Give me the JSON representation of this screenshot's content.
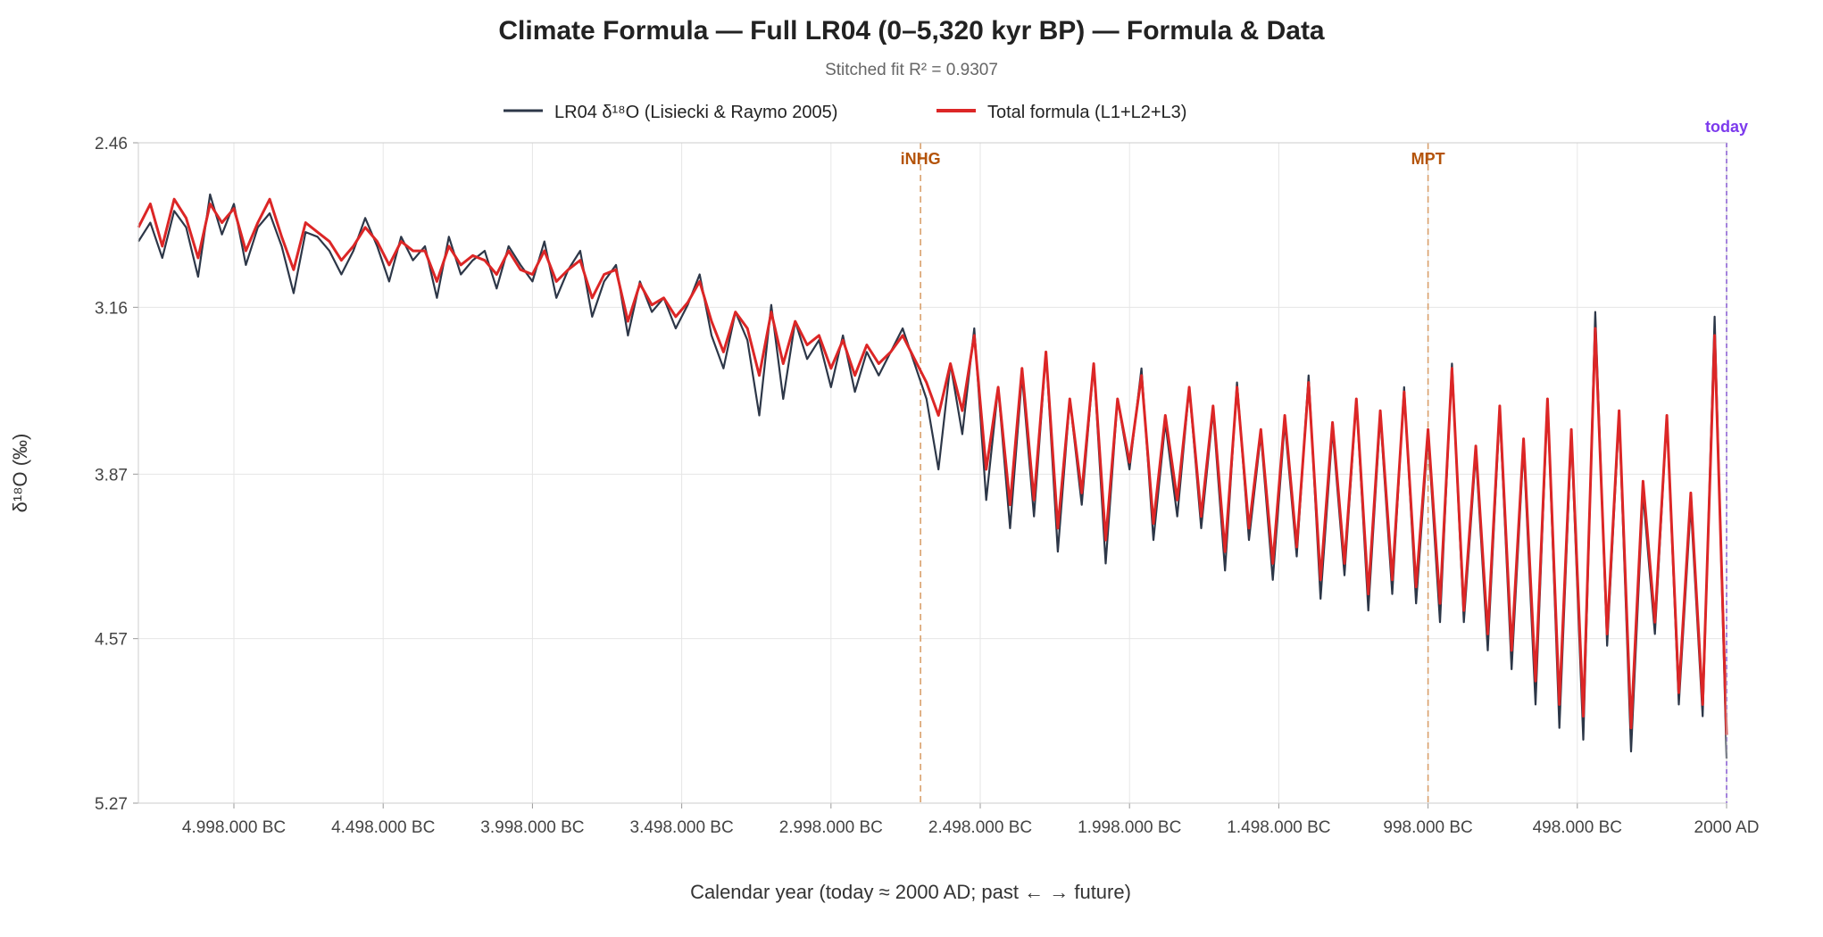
{
  "chart_data": {
    "type": "line",
    "title": "Climate Formula — Full LR04 (0–5,320 kyr BP) — Formula & Data",
    "subtitle": "Stitched fit R² = 0.9307",
    "xlabel": "Calendar year (today ≈ 2000 AD; past ← → future)",
    "ylabel": "δ¹⁸O (‰)",
    "x_unit": "calendar year",
    "xlim": [
      -5318000,
      2000
    ],
    "ylim": [
      2.46,
      5.27
    ],
    "y_inverted": true,
    "grid": true,
    "legend_position": "top-center",
    "x_ticks": [
      {
        "value": -4998000,
        "label": "4.998.000 BC"
      },
      {
        "value": -4498000,
        "label": "4.498.000 BC"
      },
      {
        "value": -3998000,
        "label": "3.998.000 BC"
      },
      {
        "value": -3498000,
        "label": "3.498.000 BC"
      },
      {
        "value": -2998000,
        "label": "2.998.000 BC"
      },
      {
        "value": -2498000,
        "label": "2.498.000 BC"
      },
      {
        "value": -1998000,
        "label": "1.998.000 BC"
      },
      {
        "value": -1498000,
        "label": "1.498.000 BC"
      },
      {
        "value": -998000,
        "label": "998.000 BC"
      },
      {
        "value": -498000,
        "label": "498.000 BC"
      },
      {
        "value": 2000,
        "label": "2000 AD"
      }
    ],
    "y_ticks": [
      {
        "value": 2.46,
        "label": "2.46"
      },
      {
        "value": 3.16,
        "label": "3.16"
      },
      {
        "value": 3.87,
        "label": "3.87"
      },
      {
        "value": 4.57,
        "label": "4.57"
      },
      {
        "value": 5.27,
        "label": "5.27"
      }
    ],
    "markers": [
      {
        "label": "iNHG",
        "x": -2698000,
        "color": "#b45309",
        "style": "dashed-tan"
      },
      {
        "label": "MPT",
        "x": -998000,
        "color": "#b45309",
        "style": "dashed-tan"
      },
      {
        "label": "today",
        "x": 2000,
        "color": "#7c3aed",
        "style": "dashed-purple"
      }
    ],
    "series": [
      {
        "name": "LR04 δ¹⁸O (Lisiecki & Raymo 2005)",
        "color": "#2d3748",
        "x": [
          -5318000,
          -5278000,
          -5238000,
          -5198000,
          -5158000,
          -5118000,
          -5078000,
          -5038000,
          -4998000,
          -4958000,
          -4918000,
          -4878000,
          -4838000,
          -4798000,
          -4758000,
          -4718000,
          -4678000,
          -4638000,
          -4598000,
          -4558000,
          -4518000,
          -4478000,
          -4438000,
          -4398000,
          -4358000,
          -4318000,
          -4278000,
          -4238000,
          -4198000,
          -4158000,
          -4118000,
          -4078000,
          -4038000,
          -3998000,
          -3958000,
          -3918000,
          -3878000,
          -3838000,
          -3798000,
          -3758000,
          -3718000,
          -3678000,
          -3638000,
          -3598000,
          -3558000,
          -3518000,
          -3478000,
          -3438000,
          -3398000,
          -3358000,
          -3318000,
          -3278000,
          -3238000,
          -3198000,
          -3158000,
          -3118000,
          -3078000,
          -3038000,
          -2998000,
          -2958000,
          -2918000,
          -2878000,
          -2838000,
          -2798000,
          -2758000,
          -2718000,
          -2678000,
          -2638000,
          -2598000,
          -2558000,
          -2518000,
          -2478000,
          -2438000,
          -2398000,
          -2358000,
          -2318000,
          -2278000,
          -2238000,
          -2198000,
          -2158000,
          -2118000,
          -2078000,
          -2038000,
          -1998000,
          -1958000,
          -1918000,
          -1878000,
          -1838000,
          -1798000,
          -1758000,
          -1718000,
          -1678000,
          -1638000,
          -1598000,
          -1558000,
          -1518000,
          -1478000,
          -1438000,
          -1398000,
          -1358000,
          -1318000,
          -1278000,
          -1238000,
          -1198000,
          -1158000,
          -1118000,
          -1078000,
          -1038000,
          -998000,
          -958000,
          -918000,
          -878000,
          -838000,
          -798000,
          -758000,
          -718000,
          -678000,
          -638000,
          -598000,
          -558000,
          -518000,
          -478000,
          -438000,
          -398000,
          -358000,
          -318000,
          -278000,
          -238000,
          -198000,
          -158000,
          -118000,
          -78000,
          -38000,
          2000
        ],
        "y": [
          2.88,
          2.8,
          2.95,
          2.75,
          2.82,
          3.03,
          2.68,
          2.85,
          2.72,
          2.98,
          2.82,
          2.76,
          2.9,
          3.1,
          2.84,
          2.86,
          2.92,
          3.02,
          2.92,
          2.78,
          2.9,
          3.05,
          2.86,
          2.96,
          2.9,
          3.12,
          2.86,
          3.02,
          2.96,
          2.92,
          3.08,
          2.9,
          2.98,
          3.05,
          2.88,
          3.12,
          3.0,
          2.92,
          3.2,
          3.05,
          2.98,
          3.28,
          3.05,
          3.18,
          3.12,
          3.25,
          3.15,
          3.02,
          3.28,
          3.42,
          3.18,
          3.3,
          3.62,
          3.15,
          3.55,
          3.22,
          3.38,
          3.3,
          3.5,
          3.28,
          3.52,
          3.35,
          3.45,
          3.35,
          3.25,
          3.4,
          3.55,
          3.85,
          3.4,
          3.7,
          3.25,
          3.98,
          3.5,
          4.1,
          3.45,
          4.05,
          3.35,
          4.2,
          3.55,
          4.0,
          3.4,
          4.25,
          3.55,
          3.85,
          3.42,
          4.15,
          3.65,
          4.05,
          3.5,
          4.1,
          3.6,
          4.28,
          3.48,
          4.15,
          3.7,
          4.32,
          3.65,
          4.22,
          3.45,
          4.4,
          3.68,
          4.3,
          3.55,
          4.45,
          3.62,
          4.38,
          3.5,
          4.42,
          3.7,
          4.5,
          3.4,
          4.5,
          3.78,
          4.62,
          3.6,
          4.7,
          3.75,
          4.85,
          3.55,
          4.95,
          3.7,
          5.0,
          3.18,
          4.6,
          3.62,
          5.05,
          3.95,
          4.55,
          3.62,
          4.85,
          4.0,
          4.9,
          3.2,
          5.08
        ]
      },
      {
        "name": "Total formula (L1+L2+L3)",
        "color": "#dc2626",
        "x": [
          -5318000,
          -5278000,
          -5238000,
          -5198000,
          -5158000,
          -5118000,
          -5078000,
          -5038000,
          -4998000,
          -4958000,
          -4918000,
          -4878000,
          -4838000,
          -4798000,
          -4758000,
          -4718000,
          -4678000,
          -4638000,
          -4598000,
          -4558000,
          -4518000,
          -4478000,
          -4438000,
          -4398000,
          -4358000,
          -4318000,
          -4278000,
          -4238000,
          -4198000,
          -4158000,
          -4118000,
          -4078000,
          -4038000,
          -3998000,
          -3958000,
          -3918000,
          -3878000,
          -3838000,
          -3798000,
          -3758000,
          -3718000,
          -3678000,
          -3638000,
          -3598000,
          -3558000,
          -3518000,
          -3478000,
          -3438000,
          -3398000,
          -3358000,
          -3318000,
          -3278000,
          -3238000,
          -3198000,
          -3158000,
          -3118000,
          -3078000,
          -3038000,
          -2998000,
          -2958000,
          -2918000,
          -2878000,
          -2838000,
          -2798000,
          -2758000,
          -2718000,
          -2678000,
          -2638000,
          -2598000,
          -2558000,
          -2518000,
          -2478000,
          -2438000,
          -2398000,
          -2358000,
          -2318000,
          -2278000,
          -2238000,
          -2198000,
          -2158000,
          -2118000,
          -2078000,
          -2038000,
          -1998000,
          -1958000,
          -1918000,
          -1878000,
          -1838000,
          -1798000,
          -1758000,
          -1718000,
          -1678000,
          -1638000,
          -1598000,
          -1558000,
          -1518000,
          -1478000,
          -1438000,
          -1398000,
          -1358000,
          -1318000,
          -1278000,
          -1238000,
          -1198000,
          -1158000,
          -1118000,
          -1078000,
          -1038000,
          -998000,
          -958000,
          -918000,
          -878000,
          -838000,
          -798000,
          -758000,
          -718000,
          -678000,
          -638000,
          -598000,
          -558000,
          -518000,
          -478000,
          -438000,
          -398000,
          -358000,
          -318000,
          -278000,
          -238000,
          -198000,
          -158000,
          -118000,
          -78000,
          -38000,
          2000
        ],
        "y": [
          2.82,
          2.72,
          2.9,
          2.7,
          2.78,
          2.95,
          2.72,
          2.8,
          2.74,
          2.92,
          2.8,
          2.7,
          2.86,
          3.0,
          2.8,
          2.84,
          2.88,
          2.96,
          2.9,
          2.82,
          2.88,
          2.98,
          2.88,
          2.92,
          2.92,
          3.05,
          2.9,
          2.98,
          2.94,
          2.96,
          3.02,
          2.92,
          3.0,
          3.02,
          2.92,
          3.05,
          3.0,
          2.96,
          3.12,
          3.02,
          3.0,
          3.22,
          3.06,
          3.15,
          3.12,
          3.2,
          3.14,
          3.05,
          3.22,
          3.35,
          3.18,
          3.25,
          3.45,
          3.18,
          3.4,
          3.22,
          3.32,
          3.28,
          3.42,
          3.3,
          3.45,
          3.32,
          3.4,
          3.35,
          3.28,
          3.38,
          3.48,
          3.62,
          3.4,
          3.6,
          3.28,
          3.85,
          3.5,
          4.0,
          3.42,
          3.98,
          3.35,
          4.1,
          3.55,
          3.95,
          3.4,
          4.15,
          3.55,
          3.82,
          3.45,
          4.08,
          3.62,
          3.98,
          3.5,
          4.05,
          3.58,
          4.2,
          3.5,
          4.1,
          3.68,
          4.25,
          3.62,
          4.18,
          3.48,
          4.32,
          3.65,
          4.25,
          3.55,
          4.38,
          3.6,
          4.32,
          3.52,
          4.35,
          3.68,
          4.42,
          3.42,
          4.45,
          3.75,
          4.55,
          3.58,
          4.62,
          3.72,
          4.75,
          3.55,
          4.85,
          3.68,
          4.9,
          3.25,
          4.55,
          3.6,
          4.95,
          3.9,
          4.5,
          3.62,
          4.8,
          3.95,
          4.85,
          3.28,
          4.98
        ]
      }
    ]
  }
}
